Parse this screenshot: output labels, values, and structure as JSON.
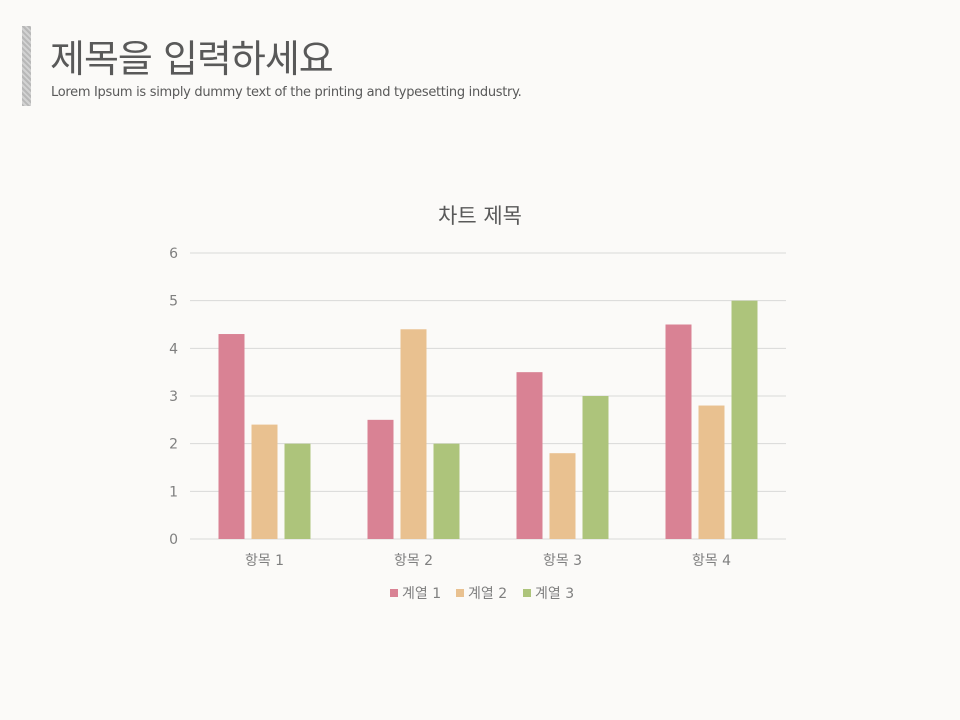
{
  "slide": {
    "title": "제목을 입력하세요",
    "subtitle": "Lorem Ipsum is simply dummy text of the printing and typesetting industry."
  },
  "colors": {
    "background": "#fbfaf8",
    "text": "#595959",
    "axis_text": "#7f7f7f",
    "gridline": "#d9d9d9",
    "series": [
      "#d98294",
      "#e9c190",
      "#adc47b"
    ]
  },
  "chart_data": {
    "type": "bar",
    "title": "차트 제목",
    "categories": [
      "항목 1",
      "항목 2",
      "항목 3",
      "항목 4"
    ],
    "series": [
      {
        "name": "계열 1",
        "values": [
          4.3,
          2.5,
          3.5,
          4.5
        ]
      },
      {
        "name": "계열 2",
        "values": [
          2.4,
          4.4,
          1.8,
          2.8
        ]
      },
      {
        "name": "계열 3",
        "values": [
          2.0,
          2.0,
          3.0,
          5.0
        ]
      }
    ],
    "yticks": [
      "0",
      "1",
      "2",
      "3",
      "4",
      "5",
      "6"
    ],
    "ylim": [
      0,
      6
    ],
    "grid": true,
    "legend_position": "bottom"
  }
}
